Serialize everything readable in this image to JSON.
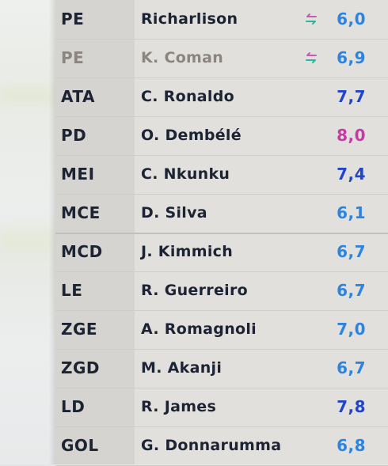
{
  "rows": [
    {
      "pos": "PE",
      "name": "Richarlison",
      "rating": "6,0",
      "rating_color": "#2a84e0",
      "subbed": true,
      "muted": false
    },
    {
      "pos": "PE",
      "name": "K. Coman",
      "rating": "6,9",
      "rating_color": "#2a84e0",
      "subbed": true,
      "muted": true
    },
    {
      "pos": "ATA",
      "name": "C. Ronaldo",
      "rating": "7,7",
      "rating_color": "#2045c8",
      "subbed": false,
      "muted": false
    },
    {
      "pos": "PD",
      "name": "O. Dembélé",
      "rating": "8,0",
      "rating_color": "#c63aa6",
      "subbed": false,
      "muted": false
    },
    {
      "pos": "MEI",
      "name": "C. Nkunku",
      "rating": "7,4",
      "rating_color": "#2045c8",
      "subbed": false,
      "muted": false
    },
    {
      "pos": "MCE",
      "name": "D. Silva",
      "rating": "6,1",
      "rating_color": "#2a84e0",
      "subbed": false,
      "muted": false
    },
    {
      "pos": "MCD",
      "name": "J. Kimmich",
      "rating": "6,7",
      "rating_color": "#2a84e0",
      "subbed": false,
      "muted": false
    },
    {
      "pos": "LE",
      "name": "R. Guerreiro",
      "rating": "6,7",
      "rating_color": "#2a84e0",
      "subbed": false,
      "muted": false
    },
    {
      "pos": "ZGE",
      "name": "A. Romagnoli",
      "rating": "7,0",
      "rating_color": "#2a84e0",
      "subbed": false,
      "muted": false
    },
    {
      "pos": "ZGD",
      "name": "M. Akanji",
      "rating": "6,7",
      "rating_color": "#2a84e0",
      "subbed": false,
      "muted": false
    },
    {
      "pos": "LD",
      "name": "R. James",
      "rating": "7,8",
      "rating_color": "#2045c8",
      "subbed": false,
      "muted": false
    },
    {
      "pos": "GOL",
      "name": "G. Donnarumma",
      "rating": "6,8",
      "rating_color": "#2a84e0",
      "subbed": false,
      "muted": false
    }
  ],
  "sub_icon": "substitution-arrows-icon"
}
